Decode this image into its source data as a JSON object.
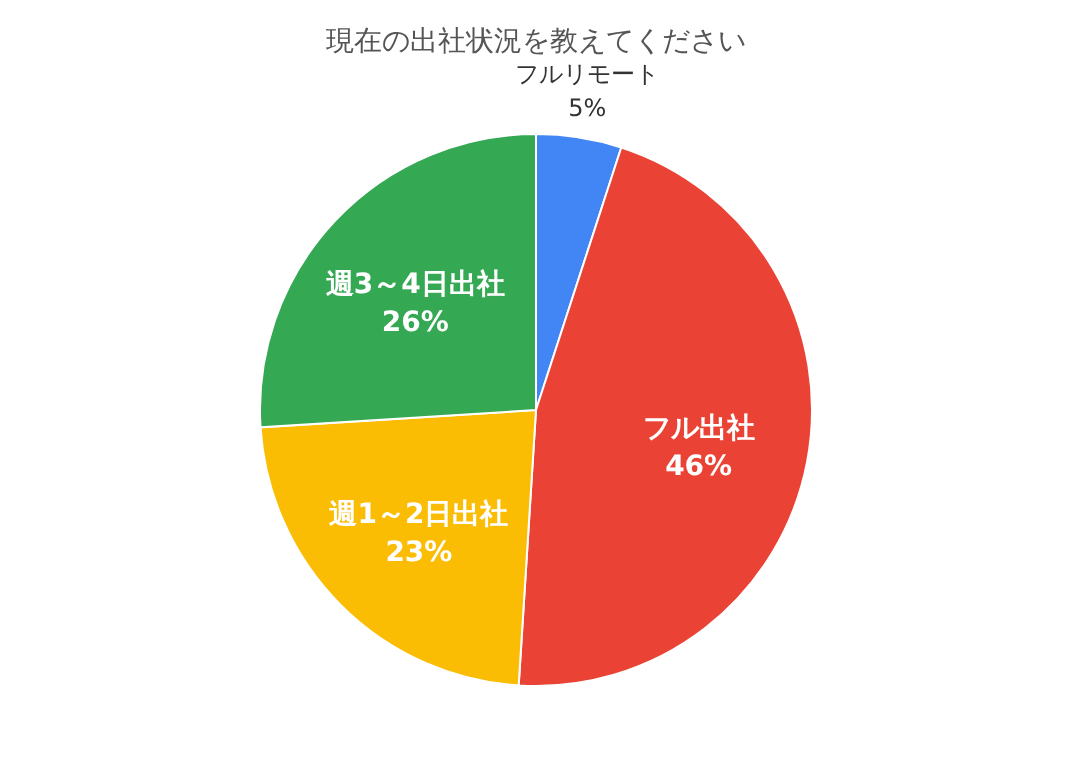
{
  "chart_data": {
    "type": "pie",
    "title": "現在の出社状況を教えてください",
    "categories": [
      "フルリモート",
      "フル出社",
      "週1～2日出社",
      "週3～4日出社"
    ],
    "values": [
      5,
      46,
      23,
      26
    ],
    "colors": [
      "#4285f4",
      "#ea4335",
      "#fbbc04",
      "#34a853"
    ],
    "value_labels": [
      "5%",
      "46%",
      "23%",
      "26%"
    ],
    "legend": false
  }
}
